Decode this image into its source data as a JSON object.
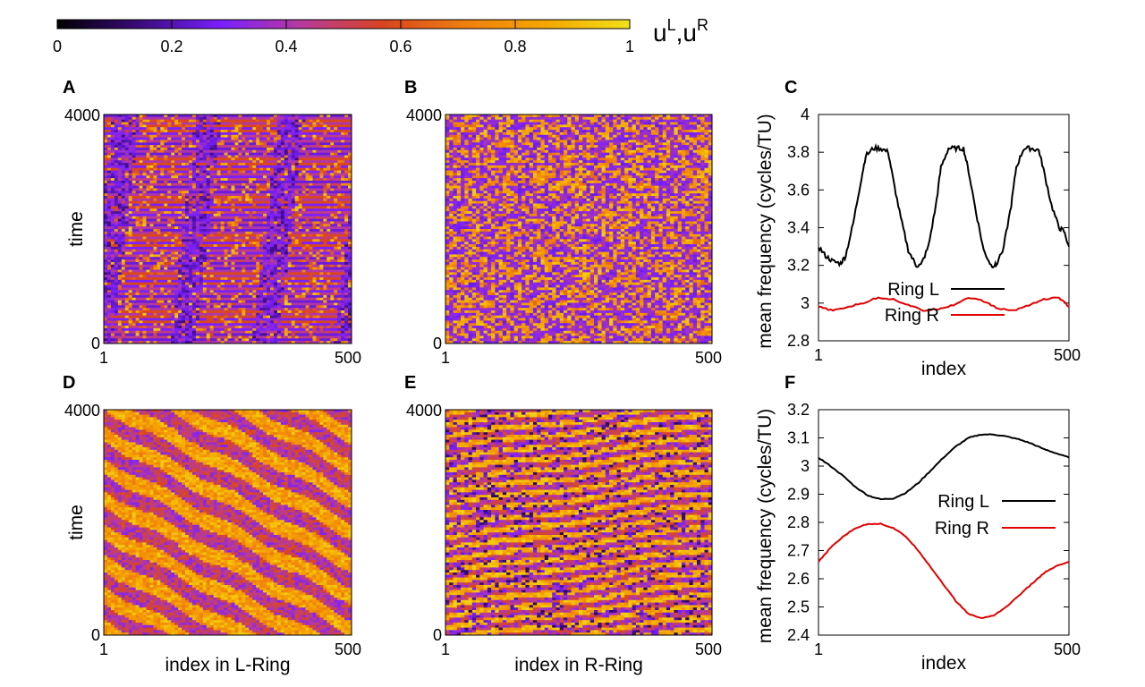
{
  "chart_data": {
    "colorbar": {
      "label_main": "u",
      "sup_L": "L",
      "sep": ",",
      "label_main2": "u",
      "sup_R": "R",
      "ticks": [
        "0",
        "0.2",
        "0.4",
        "0.6",
        "0.8",
        "1"
      ],
      "range": [
        0,
        1
      ],
      "colormap_stops": [
        "#000000",
        "#3a0a7a",
        "#7a20ff",
        "#b83a9a",
        "#d9451f",
        "#f07f0f",
        "#f5a800",
        "#f2e01a"
      ]
    },
    "heatmaps": [
      {
        "id": "A",
        "label": "A",
        "type": "heatmap",
        "xlabel": "",
        "ylabel": "time",
        "x_ticks": [
          "1",
          "500"
        ],
        "y_ticks": [
          "0",
          "4000"
        ],
        "xlim": [
          1,
          500
        ],
        "ylim": [
          0,
          4000
        ],
        "pattern": "horizontal-striped-with-three-chimera-bands"
      },
      {
        "id": "B",
        "label": "B",
        "type": "heatmap",
        "xlabel": "",
        "ylabel": "",
        "x_ticks": [
          "1",
          "500"
        ],
        "y_ticks": [
          "0",
          "4000"
        ],
        "xlim": [
          1,
          500
        ],
        "ylim": [
          0,
          4000
        ],
        "pattern": "disordered"
      },
      {
        "id": "D",
        "label": "D",
        "type": "heatmap",
        "xlabel": "index in L-Ring",
        "ylabel": "time",
        "x_ticks": [
          "1",
          "500"
        ],
        "y_ticks": [
          "0",
          "4000"
        ],
        "xlim": [
          1,
          500
        ],
        "ylim": [
          0,
          4000
        ],
        "pattern": "traveling-wave"
      },
      {
        "id": "E",
        "label": "E",
        "type": "heatmap",
        "xlabel": "index in R-Ring",
        "ylabel": "",
        "x_ticks": [
          "1",
          "500"
        ],
        "y_ticks": [
          "0",
          "4000"
        ],
        "xlim": [
          1,
          500
        ],
        "ylim": [
          0,
          4000
        ],
        "pattern": "striped-traveling-wave"
      }
    ],
    "lines": [
      {
        "id": "C",
        "label": "C",
        "type": "line",
        "xlabel": "index",
        "ylabel": "mean frequency (cycles/TU)",
        "xlim": [
          1,
          500
        ],
        "ylim": [
          2.8,
          4.0
        ],
        "x_ticks": [
          "1",
          "500"
        ],
        "y_ticks": [
          "2.8",
          "3",
          "3.2",
          "3.4",
          "3.6",
          "3.8",
          "4"
        ],
        "legend_position": "bottom-center",
        "series": [
          {
            "name": "Ring L",
            "color": "#000000",
            "x": [
              1,
              15,
              30,
              45,
              55,
              70,
              85,
              95,
              110,
              125,
              140,
              150,
              165,
              180,
              195,
              205,
              220,
              235,
              245,
              260,
              275,
              290,
              300,
              315,
              330,
              345,
              355,
              370,
              385,
              395,
              410,
              425,
              440,
              450,
              465,
              480,
              490,
              500
            ],
            "y": [
              3.3,
              3.25,
              3.22,
              3.21,
              3.25,
              3.42,
              3.64,
              3.78,
              3.82,
              3.82,
              3.8,
              3.65,
              3.45,
              3.28,
              3.2,
              3.2,
              3.3,
              3.52,
              3.72,
              3.82,
              3.82,
              3.82,
              3.7,
              3.48,
              3.28,
              3.2,
              3.2,
              3.3,
              3.52,
              3.72,
              3.82,
              3.82,
              3.81,
              3.7,
              3.52,
              3.4,
              3.38,
              3.3
            ]
          },
          {
            "name": "Ring R",
            "color": "#e00000",
            "x": [
              1,
              30,
              60,
              90,
              120,
              150,
              180,
              210,
              240,
              270,
              300,
              330,
              360,
              390,
              420,
              450,
              480,
              500
            ],
            "y": [
              2.98,
              2.96,
              2.98,
              3.0,
              3.03,
              3.02,
              2.99,
              2.96,
              2.97,
              2.99,
              3.03,
              3.01,
              2.97,
              2.96,
              2.99,
              3.02,
              3.03,
              2.98
            ]
          }
        ]
      },
      {
        "id": "F",
        "label": "F",
        "type": "line",
        "xlabel": "index",
        "ylabel": "mean frequency (cycles/TU)",
        "xlim": [
          1,
          500
        ],
        "ylim": [
          2.4,
          3.2
        ],
        "x_ticks": [
          "1",
          "500"
        ],
        "y_ticks": [
          "2.4",
          "2.5",
          "2.6",
          "2.7",
          "2.8",
          "2.9",
          "3",
          "3.1",
          "3.2"
        ],
        "legend_position": "right",
        "series": [
          {
            "name": "Ring L",
            "color": "#000000",
            "x": [
              1,
              25,
              50,
              75,
              100,
              125,
              150,
              175,
              200,
              225,
              250,
              275,
              300,
              325,
              350,
              375,
              400,
              425,
              450,
              475,
              500
            ],
            "y": [
              3.03,
              3.0,
              2.965,
              2.925,
              2.895,
              2.882,
              2.885,
              2.905,
              2.94,
              2.985,
              3.03,
              3.07,
              3.1,
              3.112,
              3.112,
              3.105,
              3.095,
              3.08,
              3.06,
              3.045,
              3.03
            ]
          },
          {
            "name": "Ring R",
            "color": "#e00000",
            "x": [
              1,
              25,
              50,
              75,
              100,
              125,
              150,
              175,
              200,
              225,
              250,
              275,
              300,
              325,
              350,
              375,
              400,
              425,
              450,
              475,
              500
            ],
            "y": [
              2.66,
              2.71,
              2.75,
              2.78,
              2.795,
              2.795,
              2.78,
              2.75,
              2.7,
              2.64,
              2.58,
              2.52,
              2.475,
              2.46,
              2.47,
              2.5,
              2.54,
              2.58,
              2.62,
              2.645,
              2.66
            ]
          }
        ]
      }
    ]
  }
}
